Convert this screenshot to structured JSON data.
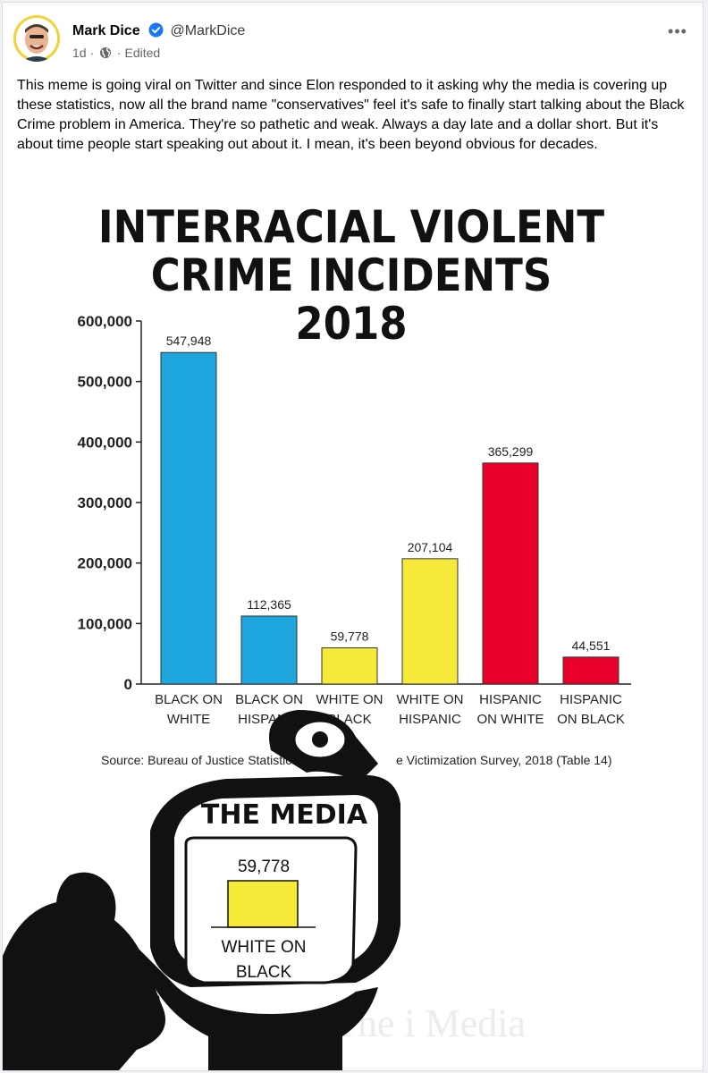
{
  "post": {
    "author": "Mark Dice",
    "handle": "@MarkDice",
    "time": "1d",
    "edited": "Edited",
    "text": "This meme is going viral on Twitter and since Elon responded to it asking why the media is covering up these statistics, now all the brand name \"conservatives\" feel it's safe to finally start talking about the Black Crime problem in America. They're so pathetic and weak. Always a day late and a dollar short. But it's about time people start speaking out about it. I mean, it's been beyond obvious for decades.",
    "icons": {
      "verified": "verified-badge-icon",
      "audience": "globe-icon",
      "menu": "more-options-icon"
    }
  },
  "meme": {
    "title_line1": "INTERRACIAL VIOLENT",
    "title_line2": "CRIME INCIDENTS",
    "title_line3": "2018",
    "source": "Source: Bureau of Justice Statistics, Na",
    "source_tail": "e Victimization Survey, 2018 (Table 14)",
    "media_label": "THE MEDIA",
    "screen_value": "59,778",
    "screen_label_line1": "WHITE ON",
    "screen_label_line2": "BLACK",
    "watermark": "The  i  Media"
  },
  "chart_data": {
    "type": "bar",
    "title": "INTERRACIAL VIOLENT CRIME INCIDENTS 2018",
    "categories": [
      "BLACK ON WHITE",
      "BLACK ON HISPANIC",
      "WHITE ON BLACK",
      "WHITE ON HISPANIC",
      "HISPANIC ON WHITE",
      "HISPANIC ON BLACK"
    ],
    "category_lines": [
      [
        "BLACK ON",
        "WHITE"
      ],
      [
        "BLACK ON",
        "HISPANIC"
      ],
      [
        "WHITE ON",
        "BLACK"
      ],
      [
        "WHITE ON",
        "HISPANIC"
      ],
      [
        "HISPANIC",
        "ON WHITE"
      ],
      [
        "HISPANIC",
        "ON BLACK"
      ]
    ],
    "values": [
      547948,
      112365,
      59778,
      207104,
      365299,
      44551
    ],
    "value_labels": [
      "547,948",
      "112,365",
      "59,778",
      "207,104",
      "365,299",
      "44,551"
    ],
    "colors": [
      "#1ea6de",
      "#1ea6de",
      "#f7ea3a",
      "#f7ea3a",
      "#e8002a",
      "#e8002a"
    ],
    "yticks": [
      0,
      100000,
      200000,
      300000,
      400000,
      500000,
      600000
    ],
    "ytick_labels": [
      "0",
      "100,000",
      "200,000",
      "300,000",
      "400,000",
      "500,000",
      "600,000"
    ],
    "ylim": [
      0,
      600000
    ],
    "grid": false
  }
}
